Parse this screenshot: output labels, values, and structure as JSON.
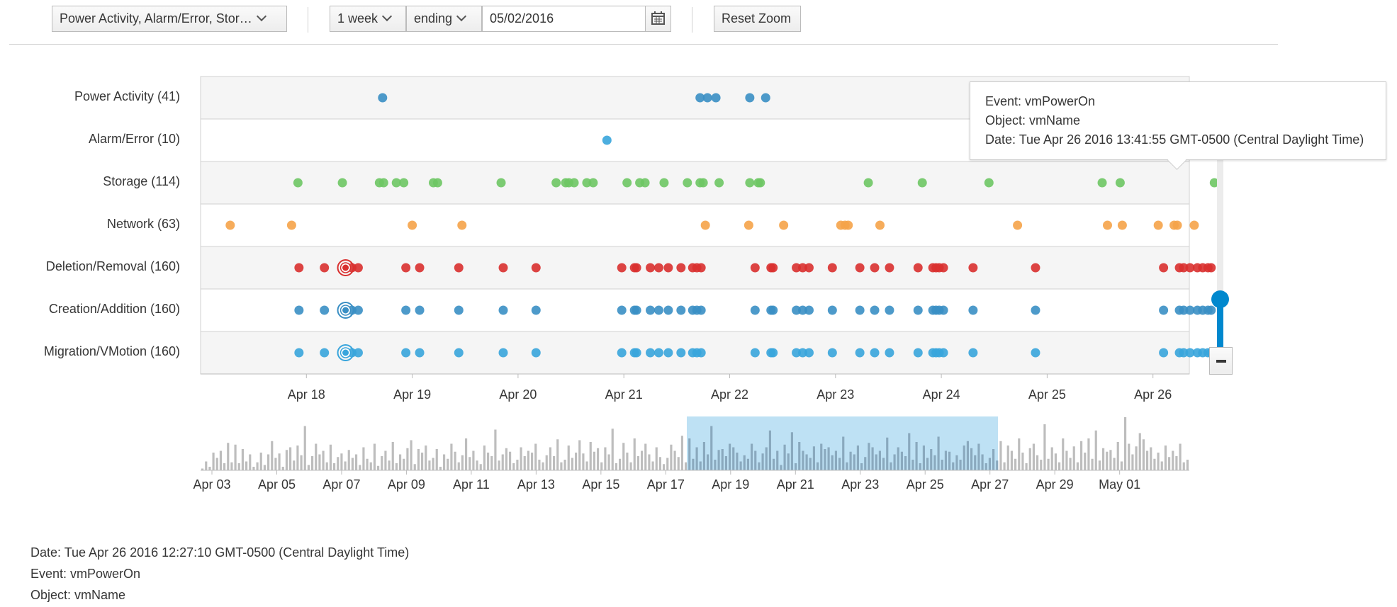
{
  "toolbar": {
    "event_filter_label": "Power Activity, Alarm/Error, Stor…",
    "range_label": "1 week",
    "mode_label": "ending",
    "date_value": "05/02/2016",
    "reset_zoom_label": "Reset Zoom"
  },
  "rows": [
    {
      "label": "Power Activity (41)",
      "color": "#3a8fc4"
    },
    {
      "label": "Alarm/Error (10)",
      "color": "#39a5dc"
    },
    {
      "label": "Storage (114)",
      "color": "#6ec664"
    },
    {
      "label": "Network (63)",
      "color": "#f5a349"
    },
    {
      "label": "Deletion/Removal (160)",
      "color": "#d9302f"
    },
    {
      "label": "Creation/Addition (160)",
      "color": "#3a8fc4"
    },
    {
      "label": "Migration/VMotion (160)",
      "color": "#39a5dc"
    }
  ],
  "chart_data": {
    "type": "scatter",
    "x_axis_ticks": [
      "Apr 18",
      "Apr 19",
      "Apr 20",
      "Apr 21",
      "Apr 22",
      "Apr 23",
      "Apr 24",
      "Apr 25",
      "Apr 26"
    ],
    "overview_ticks": [
      "Apr 03",
      "Apr 05",
      "Apr 07",
      "Apr 09",
      "Apr 11",
      "Apr 13",
      "Apr 15",
      "Apr 17",
      "Apr 19",
      "Apr 21",
      "Apr 23",
      "Apr 25",
      "Apr 27",
      "Apr 29",
      "May 01"
    ],
    "selected_range": [
      "Apr 17.3",
      "Apr 26.7"
    ],
    "series": [
      {
        "name": "Power Activity (41)",
        "x": [
          18.72,
          21.72,
          21.79,
          21.87,
          22.19,
          22.34,
          26.47,
          26.53
        ]
      },
      {
        "name": "Alarm/Error (10)",
        "x": [
          20.84
        ]
      },
      {
        "name": "Storage (114)",
        "x": [
          17.92,
          18.34,
          18.69,
          18.73,
          18.85,
          18.92,
          19.2,
          19.24,
          19.84,
          20.36,
          20.45,
          20.48,
          20.53,
          20.65,
          20.71,
          21.03,
          21.15,
          21.2,
          21.38,
          21.6,
          21.72,
          21.75,
          21.9,
          22.19,
          22.27,
          22.29,
          23.31,
          23.82,
          24.45,
          25.52,
          25.69,
          26.58
        ]
      },
      {
        "name": "Network (63)",
        "x": [
          17.28,
          17.86,
          19.0,
          19.47,
          21.77,
          22.18,
          22.51,
          23.05,
          23.09,
          23.12,
          23.42,
          24.72,
          25.57,
          25.71,
          26.05,
          26.2,
          26.23,
          26.39
        ]
      },
      {
        "name": "Deletion/Removal (160)",
        "x": [
          17.93,
          18.17,
          18.37,
          18.43,
          18.49,
          18.94,
          19.07,
          19.44,
          19.86,
          20.17,
          20.98,
          21.1,
          21.12,
          21.25,
          21.33,
          21.42,
          21.54,
          21.65,
          21.69,
          21.73,
          22.24,
          22.39,
          22.41,
          22.63,
          22.69,
          22.75,
          22.97,
          23.23,
          23.37,
          23.51,
          23.78,
          23.92,
          23.95,
          23.98,
          24.02,
          24.3,
          24.89,
          26.1,
          26.25,
          26.29,
          26.35,
          26.42,
          26.47,
          26.52,
          26.55
        ]
      },
      {
        "name": "Creation/Addition (160)",
        "x": [
          17.93,
          18.17,
          18.37,
          18.43,
          18.49,
          18.94,
          19.07,
          19.44,
          19.86,
          20.17,
          20.98,
          21.1,
          21.12,
          21.25,
          21.33,
          21.42,
          21.54,
          21.65,
          21.69,
          21.73,
          22.24,
          22.39,
          22.41,
          22.63,
          22.69,
          22.75,
          22.97,
          23.23,
          23.37,
          23.51,
          23.78,
          23.92,
          23.95,
          23.98,
          24.02,
          24.3,
          24.89,
          26.1,
          26.25,
          26.29,
          26.35,
          26.42,
          26.47,
          26.52,
          26.55
        ]
      },
      {
        "name": "Migration/VMotion (160)",
        "x": [
          17.93,
          18.17,
          18.37,
          18.43,
          18.49,
          18.94,
          19.07,
          19.44,
          19.86,
          20.17,
          20.98,
          21.1,
          21.12,
          21.25,
          21.33,
          21.42,
          21.54,
          21.65,
          21.69,
          21.73,
          22.24,
          22.39,
          22.41,
          22.63,
          22.69,
          22.75,
          22.97,
          23.23,
          23.37,
          23.51,
          23.78,
          23.92,
          23.95,
          23.98,
          24.02,
          24.3,
          24.89,
          26.1,
          26.25,
          26.29,
          26.35,
          26.42,
          26.47,
          26.52,
          26.55
        ]
      }
    ],
    "highlighted_x": 18.37,
    "overview_bar_heights": [
      2,
      10,
      4,
      20,
      14,
      22,
      8,
      31,
      9,
      29,
      8,
      24,
      10,
      18,
      4,
      9,
      20,
      6,
      18,
      33,
      14,
      19,
      4,
      23,
      26,
      11,
      28,
      17,
      50,
      6,
      16,
      30,
      18,
      22,
      9,
      29,
      8,
      15,
      19,
      10,
      23,
      14,
      18,
      6,
      26,
      13,
      9,
      30,
      5,
      16,
      22,
      11,
      32,
      8,
      18,
      13,
      25,
      34,
      7,
      24,
      20,
      28,
      11,
      14,
      24,
      4,
      18,
      13,
      30,
      21,
      9,
      17,
      36,
      15,
      22,
      11,
      7,
      28,
      20,
      16,
      46,
      11,
      18,
      25,
      21,
      8,
      12,
      26,
      16,
      22,
      20,
      30,
      12,
      9,
      17,
      26,
      16,
      35,
      9,
      12,
      28,
      14,
      20,
      34,
      19,
      10,
      32,
      21,
      25,
      9,
      26,
      18,
      47,
      8,
      13,
      31,
      20,
      9,
      36,
      16,
      22,
      30,
      18,
      10,
      26,
      15,
      7,
      14,
      29,
      22,
      15,
      39,
      9,
      36,
      13,
      26,
      10,
      32,
      18,
      50,
      12,
      23,
      24,
      16,
      30,
      26,
      20,
      10,
      17,
      13,
      30,
      22,
      9,
      19,
      26,
      45,
      13,
      22,
      6,
      29,
      19,
      43,
      8,
      32,
      22,
      18,
      14,
      27,
      9,
      30,
      24,
      26,
      17,
      22,
      14,
      38,
      9,
      21,
      18,
      28,
      8,
      15,
      31,
      26,
      18,
      22,
      14,
      37,
      9,
      18,
      26,
      21,
      16,
      42,
      12,
      32,
      8,
      28,
      14,
      24,
      17,
      38,
      12,
      22,
      21,
      9,
      17,
      12,
      28,
      33,
      25,
      17,
      30,
      18,
      8,
      14,
      24,
      11,
      33,
      9,
      28,
      22,
      13,
      36,
      20,
      8,
      25,
      30,
      17,
      12,
      52,
      13,
      26,
      19,
      9,
      36,
      22,
      14,
      27,
      9,
      33,
      20,
      36,
      13,
      45,
      11,
      25,
      21,
      23,
      14,
      32,
      10,
      60,
      30,
      18,
      27,
      42,
      35,
      22,
      26,
      13,
      20,
      10,
      28,
      15,
      22,
      16,
      30,
      9,
      12
    ]
  },
  "tooltip": {
    "event": "Event: vmPowerOn",
    "object": "Object: vmName",
    "date": "Date: Tue Apr 26 2016 13:41:55 GMT-0500 (Central Daylight Time)"
  },
  "info": {
    "date": "Date: Tue Apr 26 2016 12:27:10 GMT-0500 (Central Daylight Time)",
    "event": "Event: vmPowerOn",
    "object": "Object: vmName"
  },
  "icons": {
    "calendar": "calendar-icon",
    "zoom_out": "minus-icon"
  }
}
